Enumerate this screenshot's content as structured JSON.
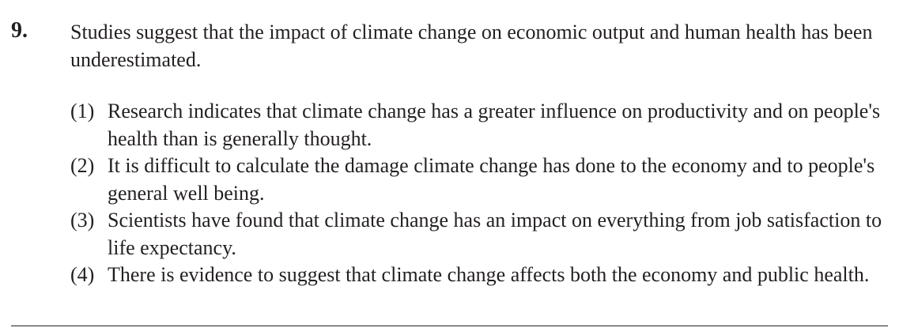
{
  "question": {
    "number": "9.",
    "stem": "Studies suggest that the impact of climate change on economic output and human health has been underestimated.",
    "options": [
      {
        "number": "(1)",
        "text": "Research indicates that climate change has a greater influence on productivity and on people's health than is generally thought."
      },
      {
        "number": "(2)",
        "text": "It is difficult to calculate the damage climate change has done to the economy and to people's general well being."
      },
      {
        "number": "(3)",
        "text": "Scientists have found that climate change has an impact on everything from job satisfaction to life expectancy."
      },
      {
        "number": "(4)",
        "text": "There is evidence to suggest that climate change affects both the economy and public health."
      }
    ]
  }
}
